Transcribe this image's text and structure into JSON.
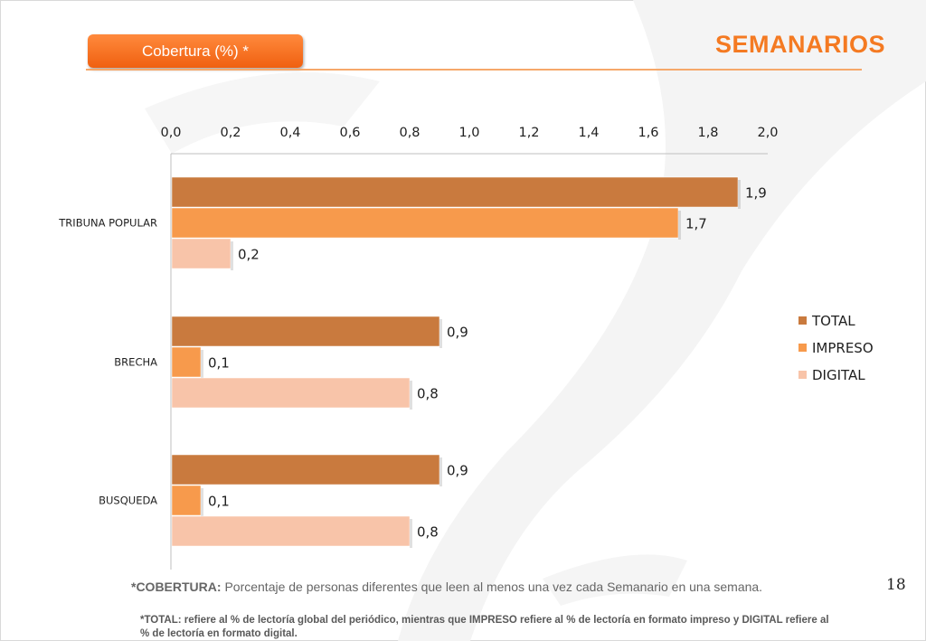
{
  "header": {
    "badge_label": "Cobertura (%) *",
    "title": "SEMANARIOS"
  },
  "page_number": "18",
  "footnote": {
    "term": "*COBERTURA:",
    "text": " Porcentaje de personas diferentes que leen al menos una vez cada Semanario en una semana.",
    "note": "*TOTAL: refiere al % de lectoría global del periódico, mientras que IMPRESO refiere al % de lectoría en formato impreso y DIGITAL refiere al % de lectoría en formato digital."
  },
  "colors": {
    "total": "#c97a3e",
    "impreso": "#f79a4c",
    "digital": "#f8c4a9",
    "accent": "#f47a22"
  },
  "chart_data": {
    "type": "bar",
    "orientation": "horizontal",
    "categories": [
      "TRIBUNA POPULAR",
      "BRECHA",
      "BUSQUEDA"
    ],
    "series": [
      {
        "name": "TOTAL",
        "values": [
          1.9,
          0.9,
          0.9
        ],
        "labels": [
          "1,9",
          "0,9",
          "0,9"
        ]
      },
      {
        "name": "IMPRESO",
        "values": [
          1.7,
          0.1,
          0.1
        ],
        "labels": [
          "1,7",
          "0,1",
          "0,1"
        ]
      },
      {
        "name": "DIGITAL",
        "values": [
          0.2,
          0.8,
          0.8
        ],
        "labels": [
          "0,2",
          "0,8",
          "0,8"
        ]
      }
    ],
    "xlim": [
      0,
      2.0
    ],
    "x_ticks": [
      "0,0",
      "0,2",
      "0,4",
      "0,6",
      "0,8",
      "1,0",
      "1,2",
      "1,4",
      "1,6",
      "1,8",
      "2,0"
    ],
    "x_axis_position": "top",
    "grid": false,
    "legend_position": "right"
  }
}
